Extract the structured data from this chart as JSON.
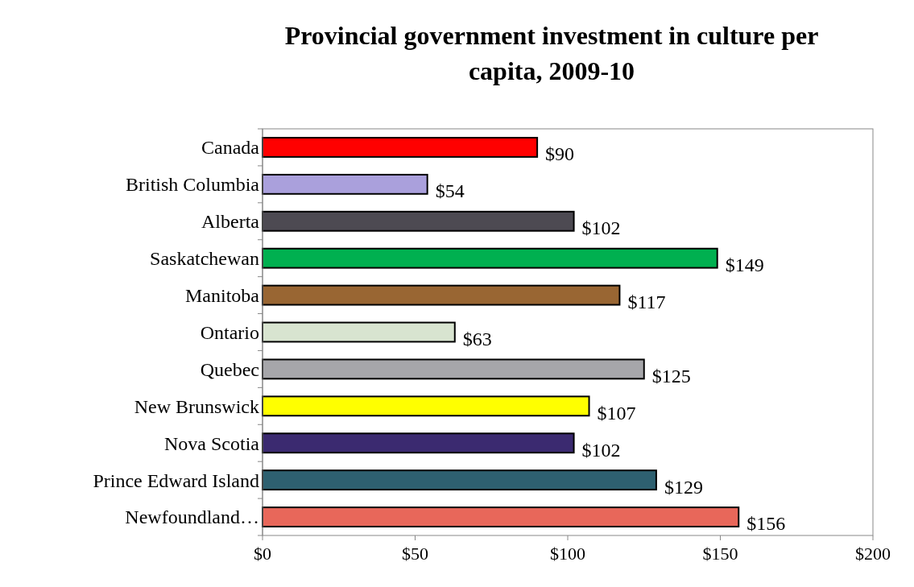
{
  "chart_data": {
    "type": "bar",
    "orientation": "horizontal",
    "title": "Provincial government investment in culture per capita, 2009-10",
    "categories": [
      "Canada",
      "British Columbia",
      "Alberta",
      "Saskatchewan",
      "Manitoba",
      "Ontario",
      "Quebec",
      "New Brunswick",
      "Nova Scotia",
      "Prince Edward Island",
      "Newfoundland…"
    ],
    "values": [
      90,
      54,
      102,
      149,
      117,
      63,
      125,
      107,
      102,
      129,
      156
    ],
    "colors": [
      "#ff0000",
      "#aaa0dc",
      "#4d4a52",
      "#00b050",
      "#996633",
      "#d8e4d0",
      "#a6a6aa",
      "#ffff00",
      "#3b2a70",
      "#2e6070",
      "#e8675a"
    ],
    "value_labels": [
      "$90",
      "$54",
      "$102",
      "$149",
      "$117",
      "$63",
      "$125",
      "$107",
      "$102",
      "$129",
      "$156"
    ],
    "xlim": [
      0,
      200
    ],
    "xticks": [
      {
        "value": 0,
        "label": "$0"
      },
      {
        "value": 50,
        "label": "$50"
      },
      {
        "value": 100,
        "label": "$100"
      },
      {
        "value": 150,
        "label": "$150"
      },
      {
        "value": 200,
        "label": "$200"
      }
    ],
    "grid": false
  }
}
